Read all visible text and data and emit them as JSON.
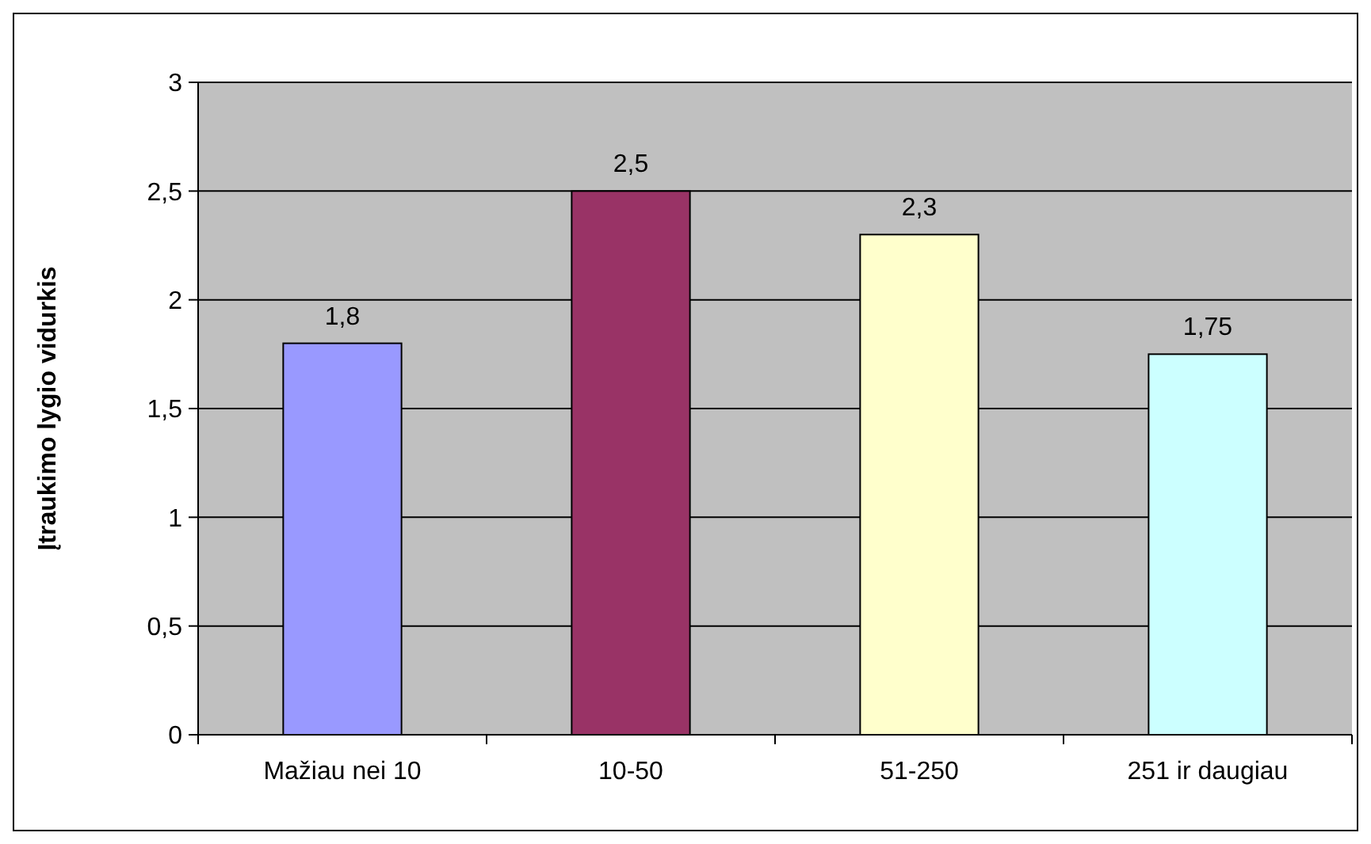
{
  "chart_data": {
    "type": "bar",
    "ylabel": "Įtraukimo lygio vidurkis",
    "categories": [
      "Mažiau nei 10",
      "10-50",
      "51-250",
      "251 ir daugiau"
    ],
    "values": [
      1.8,
      2.5,
      2.3,
      1.75
    ],
    "colors": [
      "#9999ff",
      "#993366",
      "#ffffcc",
      "#ccffff"
    ],
    "value_labels": [
      "1,8",
      "2,5",
      "2,3",
      "1,75"
    ],
    "ylim": [
      0,
      3
    ],
    "yticks": [
      0,
      {
        "value": 0.5,
        "label": "0,5"
      },
      1,
      {
        "value": 1.5,
        "label": "1,5"
      },
      2,
      {
        "value": 2.5,
        "label": "2,5"
      },
      3
    ],
    "grid": "y"
  }
}
